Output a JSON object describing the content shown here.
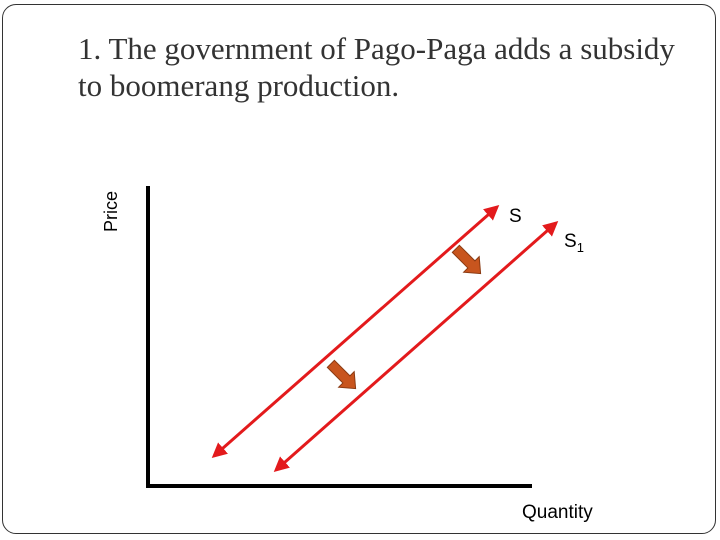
{
  "slide": {
    "title": "1. The government of Pago-Paga adds a subsidy to boomerang production."
  },
  "graph": {
    "y_axis_label": "Price",
    "x_axis_label": "Quantity",
    "supply_label": "S",
    "supply_shifted_label": "S",
    "supply_shifted_subscript": "1",
    "colors": {
      "axes": "#000000",
      "supply_lines": "#e31a1c",
      "shift_arrows": "#c8551e"
    },
    "shift_arrow_icon": "shift-right-arrow"
  }
}
